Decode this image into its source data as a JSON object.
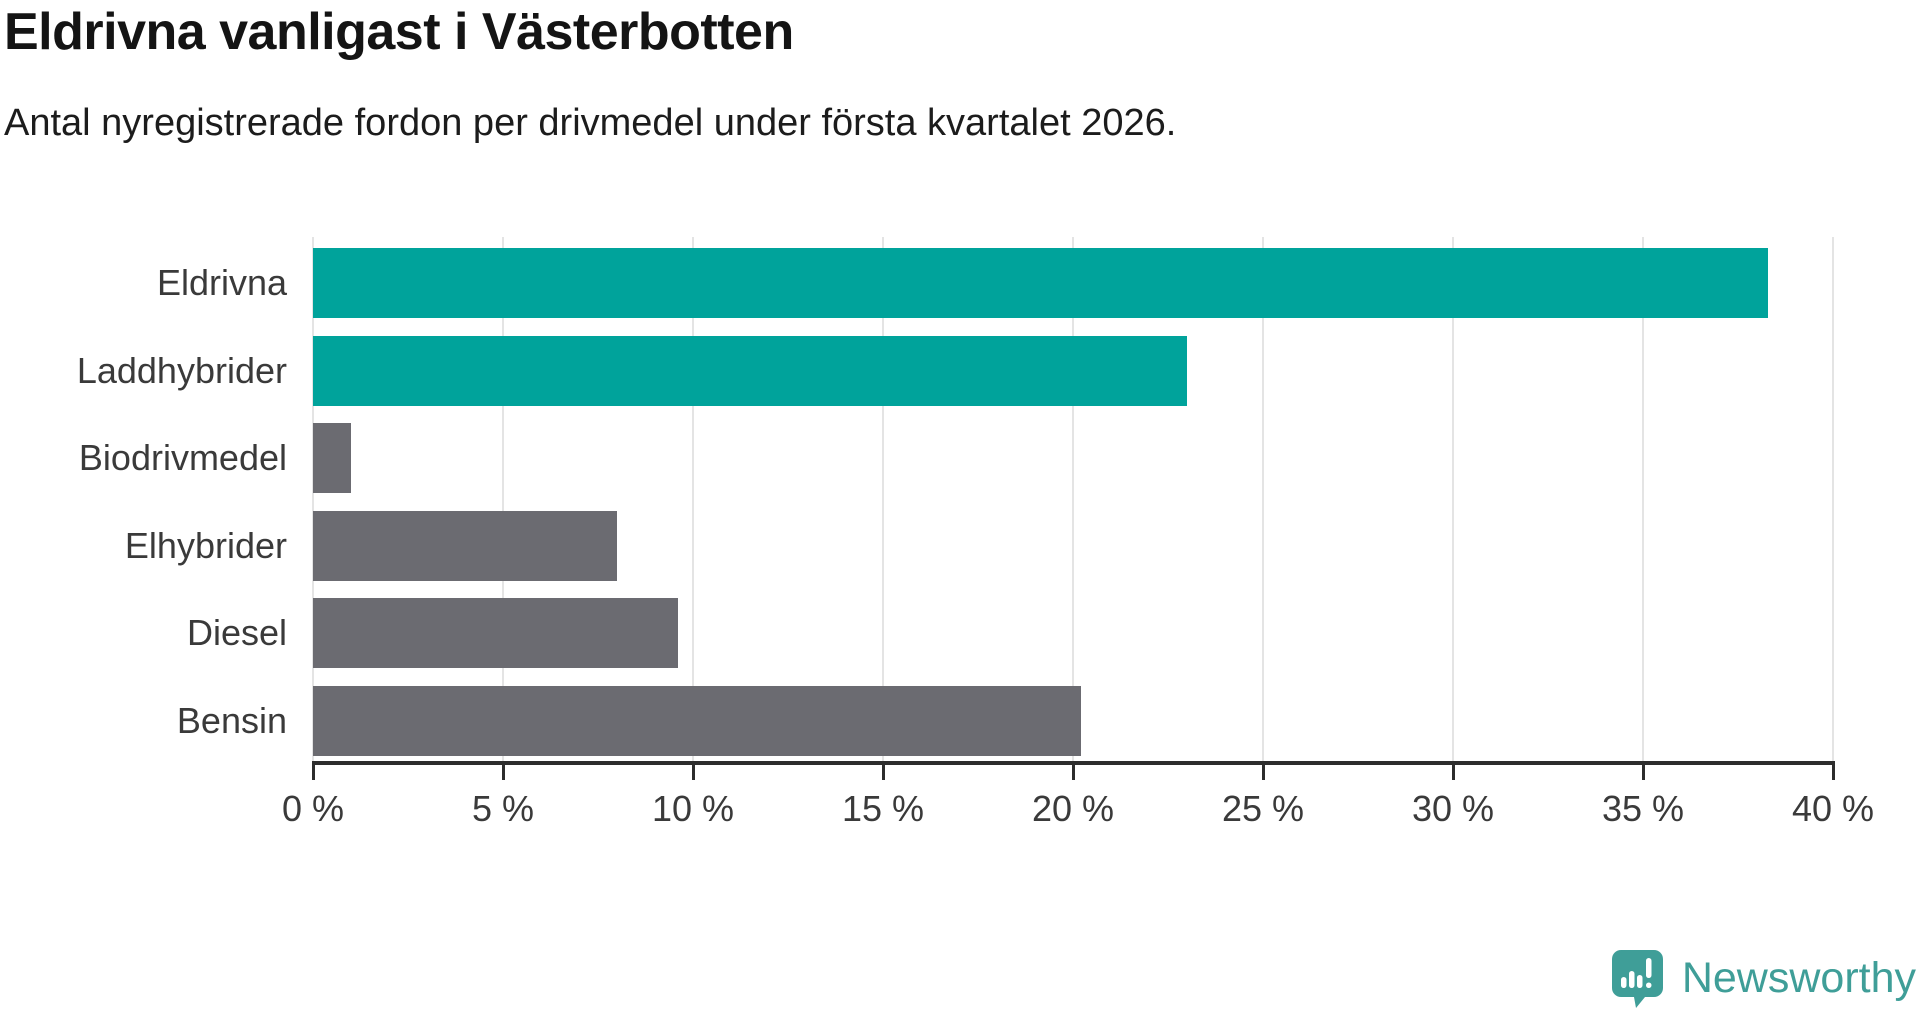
{
  "title": "Eldrivna vanligast i Västerbotten",
  "subtitle": "Antal nyregistrerade fordon per drivmedel under första kvartalet 2026.",
  "chart_data": {
    "type": "bar",
    "orientation": "horizontal",
    "title": "Eldrivna vanligast i Västerbotten",
    "subtitle": "Antal nyregistrerade fordon per drivmedel under första kvartalet 2026.",
    "categories": [
      "Eldrivna",
      "Laddhybrider",
      "Biodrivmedel",
      "Elhybrider",
      "Diesel",
      "Bensin"
    ],
    "values": [
      38.3,
      23.0,
      1.0,
      8.0,
      9.6,
      20.2
    ],
    "unit": "%",
    "xlim": [
      0,
      40
    ],
    "x_ticks": [
      0,
      5,
      10,
      15,
      20,
      25,
      30,
      35,
      40
    ],
    "x_tick_labels": [
      "0 %",
      "5 %",
      "10 %",
      "15 %",
      "20 %",
      "25 %",
      "30 %",
      "35 %",
      "40 %"
    ],
    "grid": true,
    "legend": "none",
    "bar_colors": [
      "#00a39b",
      "#00a39b",
      "#6b6b71",
      "#6b6b71",
      "#6b6b71",
      "#6b6b71"
    ],
    "highlight_color": "#00a39b",
    "default_color": "#6b6b71"
  },
  "colors": {
    "background": "#ffffff",
    "title_text": "#141414",
    "subtitle_text": "#1c1c1c",
    "axis": "#2d2d2d",
    "labels": "#3a3a3a",
    "gridline": "#e4e4e4",
    "brand_teal": "#3f9e98"
  },
  "branding": {
    "logo_text": "Newsworthy",
    "logo_icon": "newsworthy-speech-bubble-chart-icon",
    "logo_color": "#3f9e98"
  }
}
